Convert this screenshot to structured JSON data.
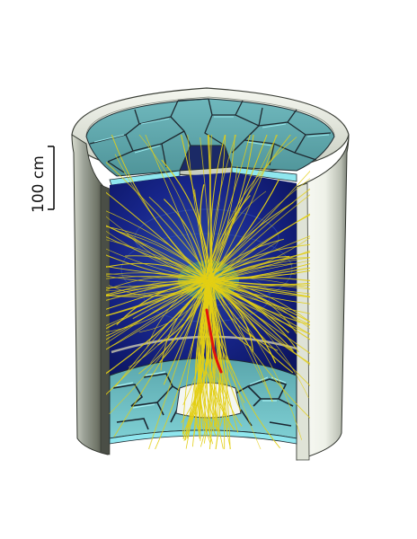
{
  "scale_bar": {
    "label": "100 cm"
  },
  "colors": {
    "outer_wall_light": "#f1f4ec",
    "outer_wall_dark": "#5a5e57",
    "endcap_tile": "#5fa7ac",
    "endcap_edge": "#1f2a31",
    "inner_cyan": "#8fe6ee",
    "tpc_blue": "#12207c",
    "tpc_blue_light": "#2a3a9a",
    "vertex_region": "#3b7f8d",
    "track": "#e3cf14",
    "highlight_track": "#e0140d",
    "scale_bar": "#111111"
  },
  "icons": {
    "detector": "cylindrical-detector-cutaway",
    "tracks": "particle-tracks",
    "highlight": "highlighted-track"
  }
}
